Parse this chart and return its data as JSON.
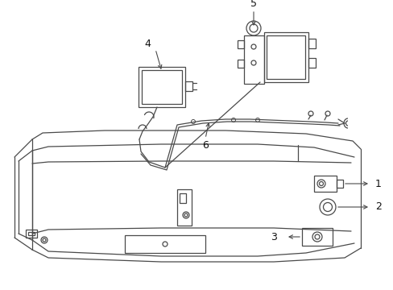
{
  "bg_color": "#ffffff",
  "line_color": "#4a4a4a",
  "label_color": "#111111",
  "figsize": [
    4.89,
    3.6
  ],
  "dpi": 100
}
